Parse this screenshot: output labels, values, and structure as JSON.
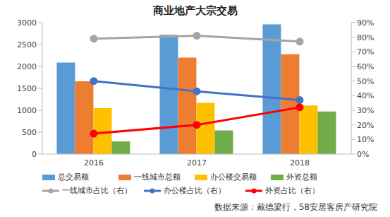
{
  "chart_data": {
    "type": "bar",
    "title": "商业地产大宗交易",
    "categories": [
      "2016",
      "2017",
      "2018"
    ],
    "series": [
      {
        "name": "总交易额",
        "type": "bar",
        "color": "#5B9BD5",
        "values": [
          2090,
          2720,
          2960
        ]
      },
      {
        "name": "一线城市总额",
        "type": "bar",
        "color": "#ED7D31",
        "values": [
          1660,
          2200,
          2280
        ]
      },
      {
        "name": "办公楼交易额",
        "type": "bar",
        "color": "#FFC000",
        "values": [
          1050,
          1170,
          1110
        ]
      },
      {
        "name": "外资总额",
        "type": "bar",
        "color": "#70AD47",
        "values": [
          290,
          540,
          970
        ]
      },
      {
        "name": "一线城市占比（右）",
        "type": "line",
        "axis": "y2",
        "color": "#A5A5A5",
        "marker": "circle",
        "values": [
          79,
          81,
          77
        ]
      },
      {
        "name": "办公楼占比（右）",
        "type": "line",
        "axis": "y2",
        "color": "#4472C4",
        "marker": "circle",
        "values": [
          50,
          43,
          37
        ]
      },
      {
        "name": "外资占比（右）",
        "type": "line",
        "axis": "y2",
        "color": "#FF0000",
        "marker": "circle",
        "values": [
          14,
          20,
          32
        ]
      }
    ],
    "ylim": [
      0,
      3000
    ],
    "yticks": [
      0,
      500,
      1000,
      1500,
      2000,
      2500,
      3000
    ],
    "y2lim": [
      0,
      90
    ],
    "y2ticks": [
      {
        "value": 0,
        "label": "0%"
      },
      {
        "value": 10,
        "label": "10%"
      },
      {
        "value": 20,
        "label": "20%"
      },
      {
        "value": 30,
        "label": "30%"
      },
      {
        "value": 40,
        "label": "40%"
      },
      {
        "value": 50,
        "label": "50%"
      },
      {
        "value": 60,
        "label": "60%"
      },
      {
        "value": 70,
        "label": "70%"
      },
      {
        "value": 80,
        "label": "80%"
      },
      {
        "value": 90,
        "label": "90%"
      }
    ],
    "grid": false,
    "legend": "bottom",
    "annotations": [
      "数据来源：戴德梁行，58安居客房产研究院"
    ]
  }
}
